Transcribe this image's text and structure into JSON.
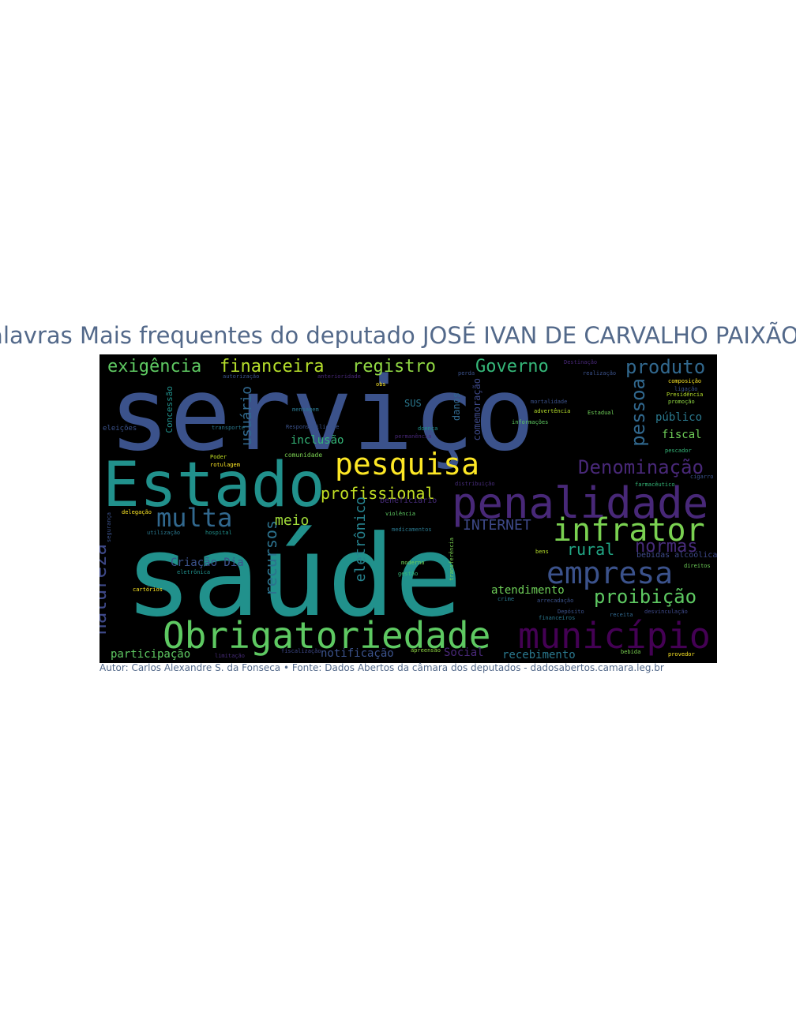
{
  "title": "Palavras Mais frequentes do deputado JOSÉ IVAN DE CARVALHO PAIXÃO",
  "footer": "Autor: Carlos Alexandre S. da Fonseca • Fonte: Dados Abertos da câmara dos deputados - dadosabertos.camara.leg.br",
  "background_color": "#000000",
  "words": [
    {
      "text": "serviço",
      "color": "#3b528b"
    },
    {
      "text": "saúde",
      "color": "#21918c"
    },
    {
      "text": "Estado",
      "color": "#21918c"
    },
    {
      "text": "penalidade",
      "color": "#482878"
    },
    {
      "text": "Obrigatoriedade",
      "color": "#5ec962"
    },
    {
      "text": "município",
      "color": "#440154"
    },
    {
      "text": "infrator",
      "color": "#7ad151"
    },
    {
      "text": "empresa",
      "color": "#3b528b"
    },
    {
      "text": "pesquisa",
      "color": "#fde725"
    },
    {
      "text": "multa",
      "color": "#31688e"
    },
    {
      "text": "produto",
      "color": "#31688e"
    },
    {
      "text": "Denominação",
      "color": "#482878"
    },
    {
      "text": "exigência",
      "color": "#5ec962"
    },
    {
      "text": "financeira",
      "color": "#b5de2b"
    },
    {
      "text": "registro",
      "color": "#90d743"
    },
    {
      "text": "Governo",
      "color": "#35b779"
    },
    {
      "text": "proibição",
      "color": "#5ec962"
    },
    {
      "text": "normas",
      "color": "#472c7a"
    },
    {
      "text": "rural",
      "color": "#21a685"
    },
    {
      "text": "profissional",
      "color": "#c2df23"
    },
    {
      "text": "pessoa",
      "color": "#31688e"
    },
    {
      "text": "natureza",
      "color": "#3e4989"
    },
    {
      "text": "recursos",
      "color": "#2c728e"
    },
    {
      "text": "eletrônico",
      "color": "#26828e"
    },
    {
      "text": "usuário",
      "color": "#31688e"
    },
    {
      "text": "meio",
      "color": "#a0da39"
    },
    {
      "text": "INTERNET",
      "color": "#3e4989"
    },
    {
      "text": "atendimento",
      "color": "#6ece58"
    },
    {
      "text": "Criação Dia",
      "color": "#3b528b"
    },
    {
      "text": "inclusão",
      "color": "#35b779"
    },
    {
      "text": "participação",
      "color": "#5ec962"
    },
    {
      "text": "notificação",
      "color": "#3b528b"
    },
    {
      "text": "Social",
      "color": "#482878"
    },
    {
      "text": "recebimento",
      "color": "#2a788e"
    },
    {
      "text": "público",
      "color": "#2a788e"
    },
    {
      "text": "fiscal",
      "color": "#6ece58"
    },
    {
      "text": "Concessão",
      "color": "#21918c"
    },
    {
      "text": "comemoração",
      "color": "#3e4989"
    },
    {
      "text": "danos",
      "color": "#31688e"
    },
    {
      "text": "SUS",
      "color": "#2a788e"
    },
    {
      "text": "eleições",
      "color": "#3b528b"
    },
    {
      "text": "bebidas alcoólicas",
      "color": "#3e4989"
    },
    {
      "text": "transporte",
      "color": "#2a788e"
    },
    {
      "text": "comunidade",
      "color": "#7ad151"
    },
    {
      "text": "beneficiário",
      "color": "#472c7a"
    },
    {
      "text": "mensagem",
      "color": "#2a788e"
    },
    {
      "text": "Responsabilidade",
      "color": "#3b528b"
    },
    {
      "text": "doença",
      "color": "#21918c"
    },
    {
      "text": "advertência",
      "color": "#b5de2b"
    },
    {
      "text": "informações",
      "color": "#5ec962"
    },
    {
      "text": "Estadual",
      "color": "#6ece58"
    },
    {
      "text": "composição",
      "color": "#fde725"
    },
    {
      "text": "ligação",
      "color": "#3b528b"
    },
    {
      "text": "Presidência",
      "color": "#b5de2b"
    },
    {
      "text": "promoção",
      "color": "#90d743"
    },
    {
      "text": "mortalidade",
      "color": "#3b528b"
    },
    {
      "text": "farmacêutico",
      "color": "#35b779"
    },
    {
      "text": "medicamentos",
      "color": "#2a788e"
    },
    {
      "text": "hospital",
      "color": "#21918c"
    },
    {
      "text": "rotulagem",
      "color": "#fde725"
    },
    {
      "text": "Poder",
      "color": "#c2df23"
    },
    {
      "text": "delegação",
      "color": "#fde725"
    },
    {
      "text": "utilização",
      "color": "#2a788e"
    },
    {
      "text": "arrecadação",
      "color": "#3b528b"
    },
    {
      "text": "fiscalização",
      "color": "#3e4989"
    },
    {
      "text": "limitação",
      "color": "#472c7a"
    },
    {
      "text": "violência",
      "color": "#5ec962"
    },
    {
      "text": "moderna",
      "color": "#6ece58"
    },
    {
      "text": "gestão",
      "color": "#35b779"
    },
    {
      "text": "cartórios",
      "color": "#fde725"
    },
    {
      "text": "Depósito",
      "color": "#3b528b"
    },
    {
      "text": "financeiros",
      "color": "#2a788e"
    },
    {
      "text": "receita",
      "color": "#31688e"
    },
    {
      "text": "direitos",
      "color": "#6ece58"
    },
    {
      "text": "provedor",
      "color": "#fde725"
    },
    {
      "text": "bebida",
      "color": "#7ad151"
    },
    {
      "text": "apreensão",
      "color": "#90d743"
    },
    {
      "text": "bens",
      "color": "#b5de2b"
    },
    {
      "text": "pescador",
      "color": "#35b779"
    },
    {
      "text": "cigarro",
      "color": "#3b528b"
    },
    {
      "text": "distribuição",
      "color": "#472c7a"
    },
    {
      "text": "transferência",
      "color": "#7ad151"
    },
    {
      "text": "perda",
      "color": "#3b528b"
    },
    {
      "text": "realização",
      "color": "#3b528b"
    },
    {
      "text": "Destinação",
      "color": "#482878"
    },
    {
      "text": "autorização",
      "color": "#3b528b"
    },
    {
      "text": "anterioridade",
      "color": "#482878"
    },
    {
      "text": "obs",
      "color": "#fde725"
    },
    {
      "text": "crime",
      "color": "#2a788e"
    },
    {
      "text": "desvinculação",
      "color": "#3e4989"
    },
    {
      "text": "permanência",
      "color": "#482878"
    },
    {
      "text": "eletrônica",
      "color": "#21918c"
    },
    {
      "text": "segurança",
      "color": "#3b528b"
    }
  ]
}
